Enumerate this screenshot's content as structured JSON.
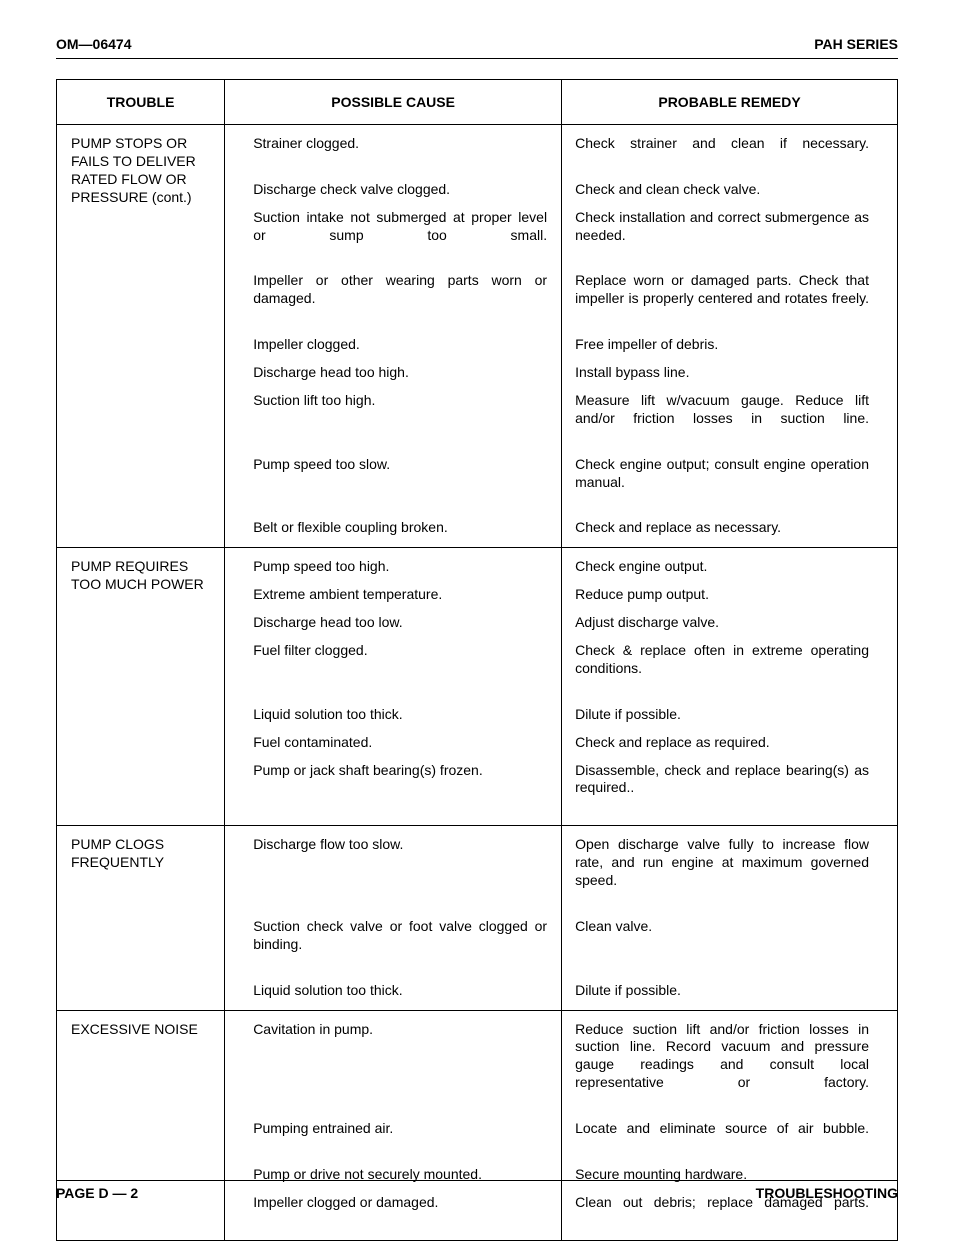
{
  "header": {
    "left": "OM—06474",
    "right": "PAH SERIES"
  },
  "footer": {
    "left": "PAGE D — 2",
    "right": "TROUBLESHOOTING"
  },
  "columns": {
    "c0_width_pct": 20,
    "c1_width_pct": 80
  },
  "headers": [
    "TROUBLE",
    "POSSIBLE CAUSE",
    "PROBABLE REMEDY"
  ],
  "sections": [
    {
      "trouble": "PUMP STOPS OR FAILS TO DELIVER RATED FLOW OR PRESSURE (cont.)",
      "rows": [
        {
          "cause": "Strainer clogged.",
          "remedy": "Check strainer and clean if necessary.",
          "rj": true
        },
        {
          "cause": "Discharge check valve clogged.",
          "remedy": "Check and clean check valve."
        },
        {
          "cause": "Suction intake not submerged at proper level or sump too small.",
          "cj": true,
          "remedy": "Check installation and correct submergence as needed.",
          "rj": true
        },
        {
          "cause": "Impeller or other wearing parts worn or damaged.",
          "cj": true,
          "remedy": "Replace worn or damaged parts. Check that impeller is properly centered and rotates freely.",
          "rj": true
        },
        {
          "cause": "Impeller clogged.",
          "remedy": "Free impeller of debris."
        },
        {
          "cause": "Discharge head too high.",
          "remedy": "Install bypass line."
        },
        {
          "cause": "Suction lift too high.",
          "remedy": "Measure lift w/vacuum gauge. Reduce lift and/or friction losses in suction line.",
          "rj": true
        },
        {
          "cause": "Pump speed too slow.",
          "remedy": "Check engine output; consult engine operation manual.",
          "rj": true
        },
        {
          "cause": "Belt or flexible coupling broken.",
          "remedy": "Check and replace as necessary."
        }
      ]
    },
    {
      "trouble": "PUMP REQUIRES TOO MUCH POWER",
      "rows": [
        {
          "cause": "Pump speed too high.",
          "remedy": "Check engine output."
        },
        {
          "cause": "Extreme ambient temperature.",
          "remedy": "Reduce pump output."
        },
        {
          "cause": "Discharge head too low.",
          "remedy": "Adjust discharge valve."
        },
        {
          "cause": "Fuel filter clogged.",
          "remedy": "Check & replace often in extreme operating conditions.",
          "rj": true
        },
        {
          "cause": "Liquid solution too thick.",
          "remedy": "Dilute if possible."
        },
        {
          "cause": "Fuel contaminated.",
          "remedy": "Check and replace as required."
        },
        {
          "cause": "Pump or jack shaft bearing(s) frozen.",
          "remedy": "Disassemble, check and replace bearing(s) as required..",
          "rj": true
        }
      ]
    },
    {
      "trouble": "PUMP CLOGS FREQUENTLY",
      "rows": [
        {
          "cause": "Discharge flow too slow.",
          "remedy": "Open discharge valve fully to increase flow rate, and run engine at maximum governed speed.",
          "rj": true
        },
        {
          "cause": "Suction check valve or foot valve clogged or binding.",
          "cj": true,
          "remedy": "Clean valve."
        },
        {
          "cause": "Liquid solution too thick.",
          "remedy": "Dilute if possible."
        }
      ]
    },
    {
      "trouble": "EXCESSIVE NOISE",
      "rows": [
        {
          "cause": "Cavitation in pump.",
          "remedy": "Reduce suction lift and/or friction losses in suction line. Record vacuum and pressure gauge readings and consult local representative or factory.",
          "rj": true
        },
        {
          "cause": "Pumping entrained air.",
          "remedy": "Locate and eliminate source of air bubble.",
          "rj": true
        },
        {
          "cause": "Pump or drive not securely mounted.",
          "remedy": "Secure mounting hardware."
        },
        {
          "cause": "Impeller clogged or damaged.",
          "remedy": "Clean out debris; replace damaged parts.",
          "rj": true
        }
      ]
    }
  ]
}
